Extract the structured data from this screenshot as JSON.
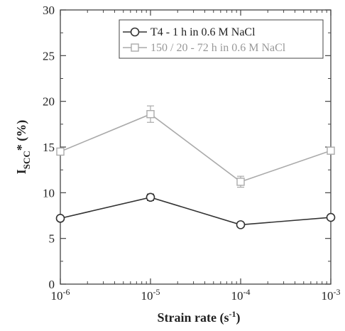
{
  "chart_data": {
    "type": "line",
    "xscale": "log",
    "x": [
      1e-06,
      1e-05,
      0.0001,
      0.001
    ],
    "xlim": [
      1e-06,
      0.001
    ],
    "ylim": [
      0,
      30
    ],
    "yticks": [
      0,
      5,
      10,
      15,
      20,
      25,
      30
    ],
    "xtick_labels": [
      {
        "base": "10",
        "exp": "-6"
      },
      {
        "base": "10",
        "exp": "-5"
      },
      {
        "base": "10",
        "exp": "-4"
      },
      {
        "base": "10",
        "exp": "-3"
      }
    ],
    "xlabel": {
      "main": "Strain rate (s",
      "sup": "-1",
      "tail": ")"
    },
    "ylabel": {
      "main": "I",
      "sub": "SCC",
      "tail": "* (%)"
    },
    "legend_position": "top-right",
    "grid": false,
    "series": [
      {
        "name": "T4 - 1 h in 0.6 M NaCl",
        "values": [
          7.2,
          9.5,
          6.5,
          7.3
        ],
        "errors": [
          0.25,
          0.35,
          0.25,
          0.25
        ],
        "marker": "circle",
        "color": "#333333"
      },
      {
        "name": "150 / 20 - 72 h in 0.6 M NaCl",
        "values": [
          14.5,
          18.6,
          11.2,
          14.6
        ],
        "errors": [
          0.3,
          0.9,
          0.6,
          0.3
        ],
        "marker": "square",
        "color": "#aaaaaa"
      }
    ]
  }
}
